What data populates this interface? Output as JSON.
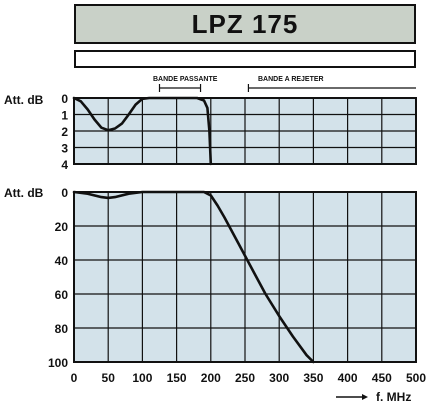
{
  "title": "LPZ 175",
  "annotations": {
    "pass_band": "BANDE PASSANTE",
    "reject_band": "BANDE A REJETER"
  },
  "colors": {
    "panel_bg": "#d3e2ea",
    "title_bg": "#c9d1c8",
    "line": "#111111"
  },
  "chart_data": [
    {
      "type": "line",
      "name": "passband-detail",
      "ylabel": "Att. dB",
      "y_ticks": [
        0,
        1,
        2,
        3,
        4
      ],
      "ylim": [
        0,
        4
      ],
      "y_inverted": true,
      "xlim": [
        0,
        500
      ],
      "grid": true,
      "series": [
        {
          "x": [
            0,
            10,
            20,
            30,
            40,
            50,
            60,
            70,
            80,
            90,
            100,
            110,
            150,
            180,
            190,
            195,
            198,
            200
          ],
          "y": [
            0,
            0.2,
            0.7,
            1.3,
            1.8,
            1.95,
            1.85,
            1.55,
            1.0,
            0.4,
            0.05,
            0.0,
            0.0,
            0.0,
            0.15,
            0.6,
            2.0,
            4.0
          ]
        }
      ]
    },
    {
      "type": "line",
      "name": "full-response",
      "xlabel": "f. MHz",
      "ylabel": "Att. dB",
      "x_ticks": [
        0,
        50,
        100,
        150,
        200,
        250,
        300,
        350,
        400,
        450,
        500
      ],
      "y_ticks": [
        0,
        20,
        40,
        60,
        80,
        100
      ],
      "xlim": [
        0,
        500
      ],
      "ylim": [
        0,
        100
      ],
      "y_inverted": true,
      "grid": true,
      "series": [
        {
          "x": [
            0,
            20,
            40,
            50,
            60,
            80,
            100,
            150,
            190,
            200,
            210,
            220,
            240,
            260,
            280,
            300,
            320,
            340,
            350
          ],
          "y": [
            0,
            1,
            3,
            3.5,
            3,
            1,
            0,
            0,
            0,
            2,
            8,
            15,
            30,
            45,
            60,
            73,
            85,
            96,
            100
          ]
        }
      ]
    }
  ]
}
